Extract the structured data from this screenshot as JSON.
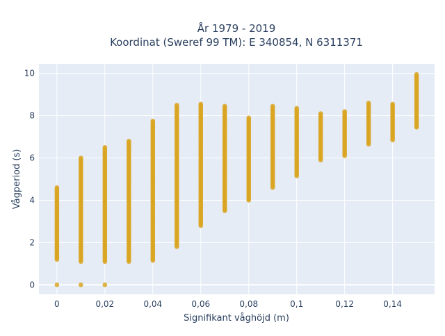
{
  "chart_data": {
    "type": "scatter",
    "title": "År 1979 - 2019",
    "subtitle": "Koordinat (Sweref 99 TM): E 340854, N 6311371",
    "xlabel": "Signifikant våghöjd (m)",
    "ylabel": "Vågperiod (s)",
    "xlim": [
      -0.0075,
      0.1575
    ],
    "ylim": [
      -0.45,
      10.45
    ],
    "xticks": [
      {
        "value": 0,
        "label": "0"
      },
      {
        "value": 0.02,
        "label": "0,02"
      },
      {
        "value": 0.04,
        "label": "0,04"
      },
      {
        "value": 0.06,
        "label": "0,06"
      },
      {
        "value": 0.08,
        "label": "0,08"
      },
      {
        "value": 0.1,
        "label": "0,1"
      },
      {
        "value": 0.12,
        "label": "0,12"
      },
      {
        "value": 0.14,
        "label": "0,14"
      }
    ],
    "yticks": [
      {
        "value": 0,
        "label": "0"
      },
      {
        "value": 2,
        "label": "2"
      },
      {
        "value": 4,
        "label": "4"
      },
      {
        "value": 6,
        "label": "6"
      },
      {
        "value": 8,
        "label": "8"
      },
      {
        "value": 10,
        "label": "10"
      }
    ],
    "grid": true,
    "legend": "none",
    "colors": {
      "marker": "#d9a521",
      "plot_background": "#e5ecf6",
      "grid": "#ffffff",
      "text": "#2a3f5f"
    },
    "columns": [
      {
        "x": 0,
        "y_min": 1.2,
        "y_max": 4.6,
        "outliers": [
          0.0
        ]
      },
      {
        "x": 0.01,
        "y_min": 1.1,
        "y_max": 6.0,
        "outliers": [
          0.0
        ]
      },
      {
        "x": 0.02,
        "y_min": 1.1,
        "y_max": 6.5,
        "outliers": [
          0.0
        ]
      },
      {
        "x": 0.03,
        "y_min": 1.1,
        "y_max": 6.8,
        "outliers": []
      },
      {
        "x": 0.04,
        "y_min": 1.15,
        "y_max": 7.75,
        "outliers": []
      },
      {
        "x": 0.05,
        "y_min": 1.8,
        "y_max": 8.5,
        "outliers": []
      },
      {
        "x": 0.06,
        "y_min": 2.8,
        "y_max": 8.55,
        "outliers": []
      },
      {
        "x": 0.07,
        "y_min": 3.5,
        "y_max": 8.45,
        "outliers": []
      },
      {
        "x": 0.08,
        "y_min": 4.0,
        "y_max": 7.9,
        "outliers": []
      },
      {
        "x": 0.09,
        "y_min": 4.6,
        "y_max": 8.45,
        "outliers": []
      },
      {
        "x": 0.1,
        "y_min": 5.15,
        "y_max": 8.35,
        "outliers": []
      },
      {
        "x": 0.11,
        "y_min": 5.9,
        "y_max": 8.1,
        "outliers": []
      },
      {
        "x": 0.12,
        "y_min": 6.1,
        "y_max": 8.2,
        "outliers": []
      },
      {
        "x": 0.13,
        "y_min": 6.65,
        "y_max": 8.6,
        "outliers": []
      },
      {
        "x": 0.14,
        "y_min": 6.85,
        "y_max": 8.55,
        "outliers": []
      },
      {
        "x": 0.15,
        "y_min": 7.45,
        "y_max": 9.95,
        "outliers": []
      }
    ]
  }
}
